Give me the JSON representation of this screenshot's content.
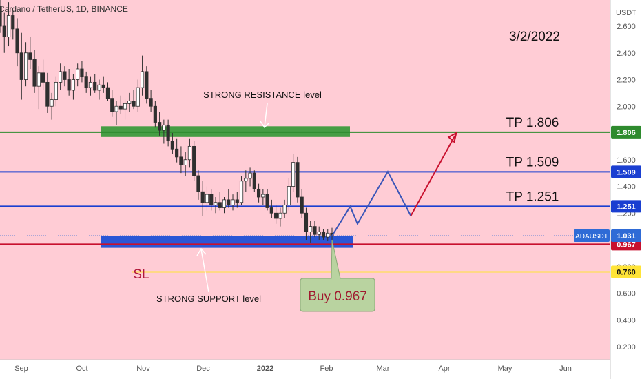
{
  "chart_data": {
    "type": "candlestick",
    "title": "Cardano / TetherUS, 1D, BINANCE",
    "symbol": "ADAUSDT",
    "currency": "USDT",
    "date_annotation": "3/2/2022",
    "y_ticks": [
      "2.600",
      "2.400",
      "2.200",
      "2.000",
      "1.800",
      "1.600",
      "1.400",
      "1.200",
      "1.000",
      "0.800",
      "0.600",
      "0.400",
      "0.200"
    ],
    "x_ticks": [
      "Sep",
      "Oct",
      "Nov",
      "Dec",
      "2022",
      "Feb",
      "Mar",
      "Apr",
      "May",
      "Jun"
    ],
    "ylim": [
      0.1,
      2.78
    ],
    "price_levels": [
      {
        "name": "TP 1.806",
        "value": 1.806,
        "badge": "1.806",
        "color": "#2e8b2e",
        "label": "TP  1.806"
      },
      {
        "name": "TP 1.509",
        "value": 1.509,
        "badge": "1.509",
        "color": "#1a3fd1",
        "label": "TP  1.509"
      },
      {
        "name": "TP 1.251",
        "value": 1.251,
        "badge": "1.251",
        "color": "#1a3fd1",
        "label": "TP  1.251"
      },
      {
        "name": "Entry",
        "value": 0.967,
        "badge": "0.967",
        "color": "#c8102e",
        "label": ""
      },
      {
        "name": "SL",
        "value": 0.76,
        "badge": "0.760",
        "color": "#ffe438",
        "label": "SL"
      }
    ],
    "current_price": {
      "symbol_label": "ADAUSDT",
      "value": 1.031,
      "badge": "1.031"
    },
    "zones": [
      {
        "name": "STRONG RESISTANCE level",
        "from": 1.77,
        "to": 1.85,
        "color": "#3c9a3c"
      },
      {
        "name": "STRONG SUPPORT level",
        "from": 0.94,
        "to": 1.03,
        "color": "#1f4fd6"
      }
    ],
    "projection_path": [
      [
        0.0,
        1.03
      ],
      [
        0.3,
        1.25
      ],
      [
        0.42,
        1.12
      ],
      [
        0.92,
        1.51
      ],
      [
        1.3,
        1.18
      ],
      [
        2.05,
        1.8
      ]
    ],
    "candles": [
      [
        2.75,
        2.82,
        2.55,
        2.6
      ],
      [
        2.6,
        2.7,
        2.4,
        2.52
      ],
      [
        2.52,
        2.78,
        2.45,
        2.68
      ],
      [
        2.68,
        2.72,
        2.5,
        2.58
      ],
      [
        2.58,
        2.66,
        2.3,
        2.4
      ],
      [
        2.4,
        2.55,
        2.05,
        2.2
      ],
      [
        2.2,
        2.48,
        2.15,
        2.4
      ],
      [
        2.4,
        2.52,
        2.28,
        2.35
      ],
      [
        2.35,
        2.42,
        2.1,
        2.15
      ],
      [
        2.15,
        2.3,
        1.98,
        2.25
      ],
      [
        2.25,
        2.35,
        2.12,
        2.18
      ],
      [
        2.18,
        2.25,
        1.95,
        2.0
      ],
      [
        2.0,
        2.1,
        1.9,
        2.05
      ],
      [
        2.05,
        2.22,
        2.0,
        2.18
      ],
      [
        2.18,
        2.32,
        2.12,
        2.26
      ],
      [
        2.26,
        2.3,
        2.15,
        2.2
      ],
      [
        2.2,
        2.28,
        2.08,
        2.12
      ],
      [
        2.12,
        2.24,
        2.05,
        2.2
      ],
      [
        2.2,
        2.32,
        2.15,
        2.28
      ],
      [
        2.28,
        2.34,
        2.18,
        2.22
      ],
      [
        2.22,
        2.26,
        2.1,
        2.14
      ],
      [
        2.14,
        2.22,
        2.08,
        2.18
      ],
      [
        2.18,
        2.24,
        2.1,
        2.12
      ],
      [
        2.12,
        2.2,
        2.05,
        2.16
      ],
      [
        2.16,
        2.22,
        2.1,
        2.14
      ],
      [
        2.14,
        2.18,
        2.04,
        2.06
      ],
      [
        2.06,
        2.12,
        1.92,
        1.96
      ],
      [
        1.96,
        2.04,
        1.86,
        2.0
      ],
      [
        2.0,
        2.08,
        1.94,
        1.98
      ],
      [
        1.98,
        2.05,
        1.9,
        2.02
      ],
      [
        2.02,
        2.1,
        1.96,
        2.04
      ],
      [
        2.04,
        2.12,
        1.98,
        2.0
      ],
      [
        2.0,
        2.2,
        1.96,
        2.14
      ],
      [
        2.14,
        2.38,
        2.08,
        2.26
      ],
      [
        2.26,
        2.3,
        2.02,
        2.06
      ],
      [
        2.06,
        2.12,
        1.96,
        2.0
      ],
      [
        2.0,
        2.04,
        1.84,
        1.88
      ],
      [
        1.88,
        1.96,
        1.78,
        1.82
      ],
      [
        1.82,
        1.9,
        1.72,
        1.86
      ],
      [
        1.86,
        1.9,
        1.7,
        1.74
      ],
      [
        1.74,
        1.8,
        1.64,
        1.68
      ],
      [
        1.68,
        1.76,
        1.58,
        1.62
      ],
      [
        1.62,
        1.7,
        1.5,
        1.56
      ],
      [
        1.56,
        1.66,
        1.48,
        1.6
      ],
      [
        1.6,
        1.76,
        1.54,
        1.7
      ],
      [
        1.7,
        1.74,
        1.44,
        1.48
      ],
      [
        1.48,
        1.52,
        1.3,
        1.36
      ],
      [
        1.36,
        1.44,
        1.18,
        1.28
      ],
      [
        1.28,
        1.4,
        1.22,
        1.34
      ],
      [
        1.34,
        1.38,
        1.22,
        1.26
      ],
      [
        1.26,
        1.32,
        1.2,
        1.28
      ],
      [
        1.28,
        1.36,
        1.22,
        1.24
      ],
      [
        1.24,
        1.32,
        1.2,
        1.3
      ],
      [
        1.3,
        1.38,
        1.24,
        1.26
      ],
      [
        1.26,
        1.34,
        1.22,
        1.3
      ],
      [
        1.3,
        1.36,
        1.24,
        1.28
      ],
      [
        1.28,
        1.48,
        1.26,
        1.44
      ],
      [
        1.44,
        1.52,
        1.36,
        1.46
      ],
      [
        1.46,
        1.54,
        1.4,
        1.5
      ],
      [
        1.5,
        1.52,
        1.36,
        1.38
      ],
      [
        1.38,
        1.42,
        1.28,
        1.32
      ],
      [
        1.32,
        1.38,
        1.26,
        1.34
      ],
      [
        1.34,
        1.38,
        1.22,
        1.24
      ],
      [
        1.24,
        1.3,
        1.16,
        1.2
      ],
      [
        1.2,
        1.26,
        1.12,
        1.16
      ],
      [
        1.16,
        1.24,
        1.1,
        1.2
      ],
      [
        1.2,
        1.3,
        1.16,
        1.26
      ],
      [
        1.26,
        1.46,
        1.22,
        1.4
      ],
      [
        1.4,
        1.64,
        1.36,
        1.58
      ],
      [
        1.58,
        1.62,
        1.28,
        1.32
      ],
      [
        1.32,
        1.38,
        1.16,
        1.2
      ],
      [
        1.2,
        1.24,
        1.0,
        1.06
      ],
      [
        1.06,
        1.14,
        0.98,
        1.1
      ],
      [
        1.1,
        1.14,
        1.02,
        1.04
      ],
      [
        1.04,
        1.1,
        1.0,
        1.06
      ],
      [
        1.06,
        1.08,
        1.0,
        1.02
      ],
      [
        1.02,
        1.08,
        0.99,
        1.05
      ],
      [
        1.05,
        1.09,
        1.0,
        1.03
      ]
    ]
  },
  "annotations": {
    "resistance_label": "STRONG RESISTANCE level",
    "support_label": "STRONG SUPPORT level",
    "buy_label": "Buy  0.967",
    "sl_label": "SL"
  },
  "colors": {
    "background": "#ffccd5",
    "candle_up": "#3a3a3a",
    "candle_down": "#2a2a2a",
    "projection_blue": "#3a55b8",
    "projection_red": "#c8102e",
    "buy_box": "#b9d3a0",
    "buy_text": "#a0192e",
    "axis_bg": "#ffffff"
  }
}
